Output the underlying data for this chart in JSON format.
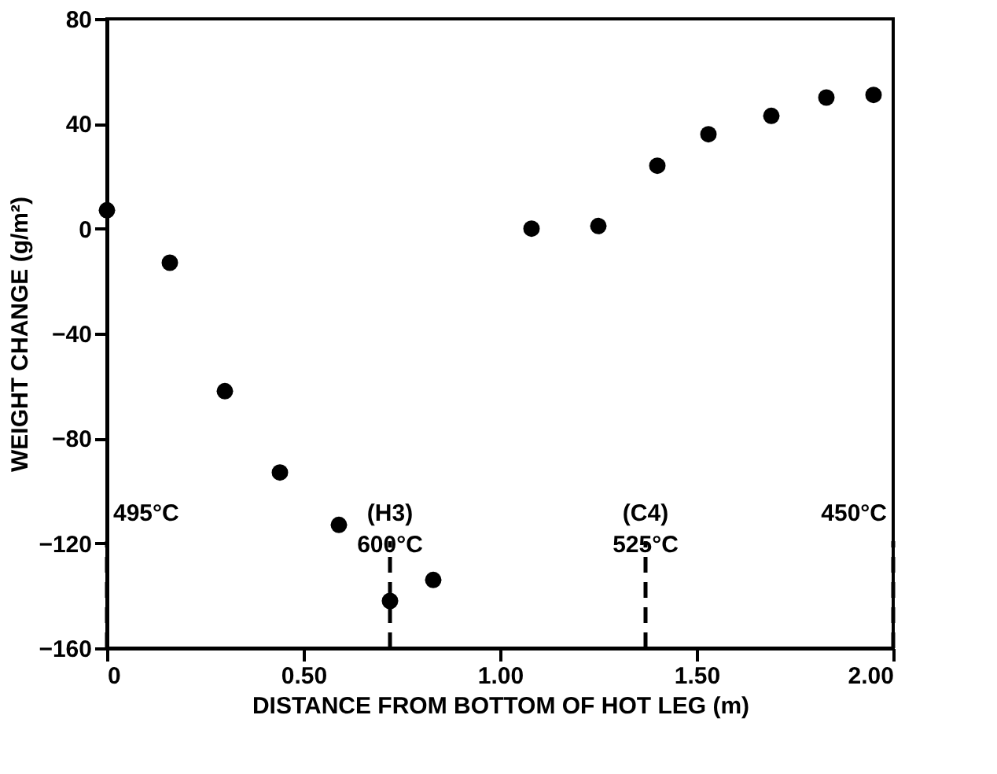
{
  "chart_data": {
    "type": "scatter",
    "xlabel": "DISTANCE FROM BOTTOM OF HOT LEG (m)",
    "ylabel": "WEIGHT CHANGE (g/m²)",
    "x": [
      0.0,
      0.16,
      0.3,
      0.44,
      0.59,
      0.72,
      0.83,
      1.08,
      1.25,
      1.4,
      1.53,
      1.69,
      1.83,
      1.95
    ],
    "values": [
      7,
      -13,
      -62,
      -93,
      -113,
      -142,
      -134,
      0,
      1,
      24,
      36,
      43,
      50,
      51
    ],
    "color": "#000000",
    "marker": "circle",
    "xlim": [
      0,
      2.0
    ],
    "xticks": [
      {
        "value": 0,
        "label": "0"
      },
      {
        "value": 0.5,
        "label": "0.50"
      },
      {
        "value": 1.0,
        "label": "1.00"
      },
      {
        "value": 1.5,
        "label": "1.50"
      },
      {
        "value": 2.0,
        "label": "2.00"
      }
    ],
    "ylim": [
      -160,
      80
    ],
    "yticks": [
      -160,
      -120,
      -80,
      -40,
      0,
      40,
      80
    ],
    "ref_lines": [
      {
        "axis": "x",
        "value": 0,
        "label": "495°C",
        "line_style": "dashed"
      },
      {
        "axis": "x",
        "value": 0.72,
        "label": "(H3)\n600°C",
        "line_style": "dashed"
      },
      {
        "axis": "x",
        "value": 1.37,
        "label": "(C4)\n525°C",
        "line_style": "dashed"
      },
      {
        "axis": "x",
        "value": 2.0,
        "label": "450°C",
        "line_style": "dashed"
      }
    ],
    "grid": false
  }
}
